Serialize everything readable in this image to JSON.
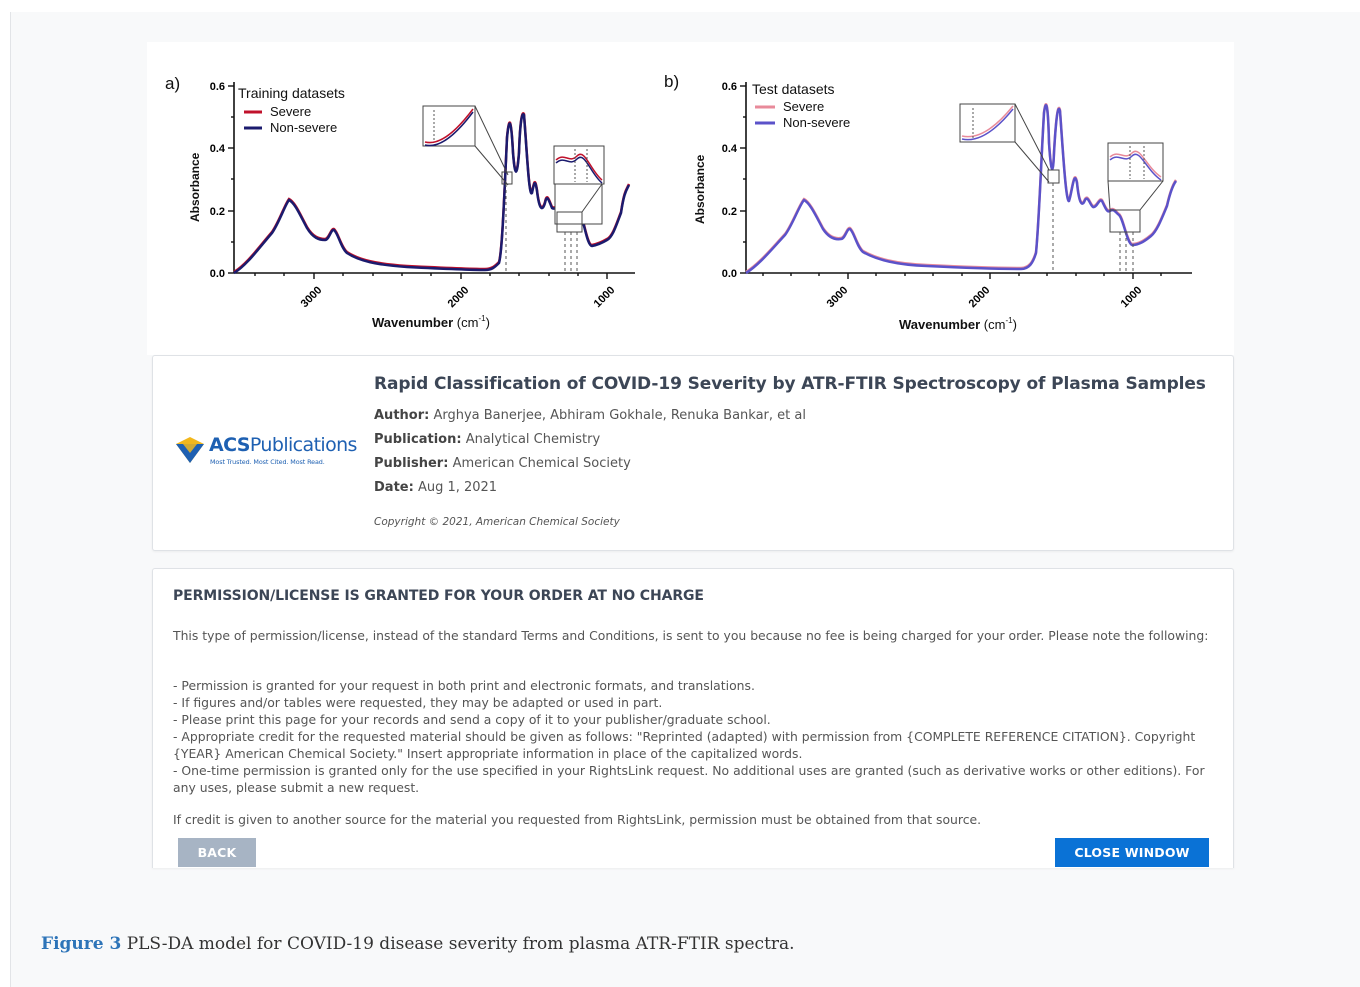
{
  "figure": {
    "panels": [
      {
        "label": "a)",
        "legend_title": "Training datasets",
        "legend": [
          {
            "name": "Severe",
            "color": "#c0112b"
          },
          {
            "name": "Non-severe",
            "color": "#1b1b6e"
          }
        ],
        "ylabel": "Absorbance",
        "yticks": [
          "0.0",
          "0.2",
          "0.4",
          "0.6"
        ],
        "xticks": [
          "3000",
          "2000",
          "1000"
        ],
        "xlabel": "Wavenumber",
        "xlabel_unit": "(cm",
        "xlabel_exp": "-1",
        "xlabel_close": ")"
      },
      {
        "label": "b)",
        "legend_title": "Test datasets",
        "legend": [
          {
            "name": "Severe",
            "color": "#e88a9a"
          },
          {
            "name": "Non-severe",
            "color": "#5b52c9"
          }
        ],
        "ylabel": "Absorbance",
        "yticks": [
          "0.0",
          "0.2",
          "0.4",
          "0.6"
        ],
        "xticks": [
          "3000",
          "2000",
          "1000"
        ],
        "xlabel": "Wavenumber",
        "xlabel_unit": "(cm",
        "xlabel_exp": "-1",
        "xlabel_close": ")"
      }
    ]
  },
  "article": {
    "logo_brand_bold": "ACS",
    "logo_brand": "Publications",
    "logo_tagline": "Most Trusted. Most Cited. Most Read.",
    "title": "Rapid Classification of COVID-19 Severity by ATR-FTIR Spectroscopy of Plasma Samples",
    "author_label": "Author:",
    "author": "Arghya Banerjee, Abhiram Gokhale, Renuka Bankar, et al",
    "publication_label": "Publication:",
    "publication": "Analytical Chemistry",
    "publisher_label": "Publisher:",
    "publisher": "American Chemical Society",
    "date_label": "Date:",
    "date": "Aug 1, 2021",
    "copyright": "Copyright © 2021, American Chemical Society"
  },
  "license": {
    "heading": "PERMISSION/LICENSE IS GRANTED FOR YOUR ORDER AT NO CHARGE",
    "intro": "This type of permission/license, instead of the standard Terms and Conditions, is sent to you because no fee is being charged for your order. Please note the following:",
    "bullets": [
      "- Permission is granted for your request in both print and electronic formats, and translations.",
      "- If figures and/or tables were requested, they may be adapted or used in part.",
      "- Please print this page for your records and send a copy of it to your publisher/graduate school.",
      "- Appropriate credit for the requested material should be given as follows: \"Reprinted (adapted) with permission from {COMPLETE REFERENCE CITATION}. Copyright {YEAR} American Chemical Society.\" Insert appropriate information in place of the capitalized words.",
      "- One-time permission is granted only for the use specified in your RightsLink request. No additional uses are granted (such as derivative works or other editions). For any uses, please submit a new request."
    ],
    "footer": "If credit is given to another source for the material you requested from RightsLink, permission must be obtained from that source.",
    "back_label": "BACK",
    "close_label": "CLOSE WINDOW"
  },
  "caption": {
    "label": "Figure 3",
    "text": " PLS-DA model for COVID-19 disease severity from plasma ATR-FTIR spectra."
  }
}
